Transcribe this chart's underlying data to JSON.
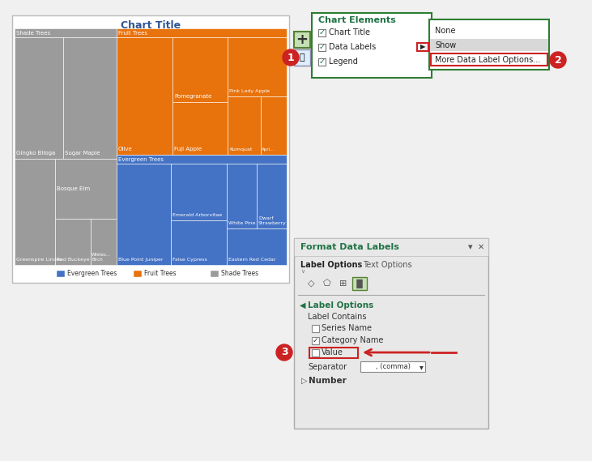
{
  "bg_color": "#f0f0f0",
  "chart_title": "Chart Title",
  "chart_title_color": "#2f5496",
  "legend": [
    "Evergreen Trees",
    "Fruit Trees",
    "Shade Trees"
  ],
  "legend_colors": [
    "#4472c4",
    "#e8720c",
    "#9b9b9b"
  ],
  "panel1_title": "Chart Elements",
  "panel1_items": [
    "Chart Title",
    "Data Labels",
    "Legend"
  ],
  "panel1_checked": [
    true,
    true,
    true
  ],
  "panel2_items": [
    "None",
    "Show",
    "More Data Label Options..."
  ],
  "panel2_highlight": "Show",
  "panel2_border_item": "More Data Label Options...",
  "panel3_title": "Format Data Labels",
  "panel3_section": "Label Options",
  "panel3_contains": "Label Contains",
  "panel3_checkboxes": [
    "Series Name",
    "Category Name",
    "Value"
  ],
  "panel3_checked": [
    false,
    true,
    false
  ],
  "panel3_separator": ", (comma)",
  "panel3_number": "Number",
  "circle_color": "#cc2222",
  "arrow_color": "#cc2222",
  "green_color": "#217346",
  "green_border": "#2e7d32",
  "shade_color": "#9b9b9b",
  "fruit_color": "#e8720c",
  "evergreen_color": "#4472c4",
  "red_color": "#cc2222"
}
